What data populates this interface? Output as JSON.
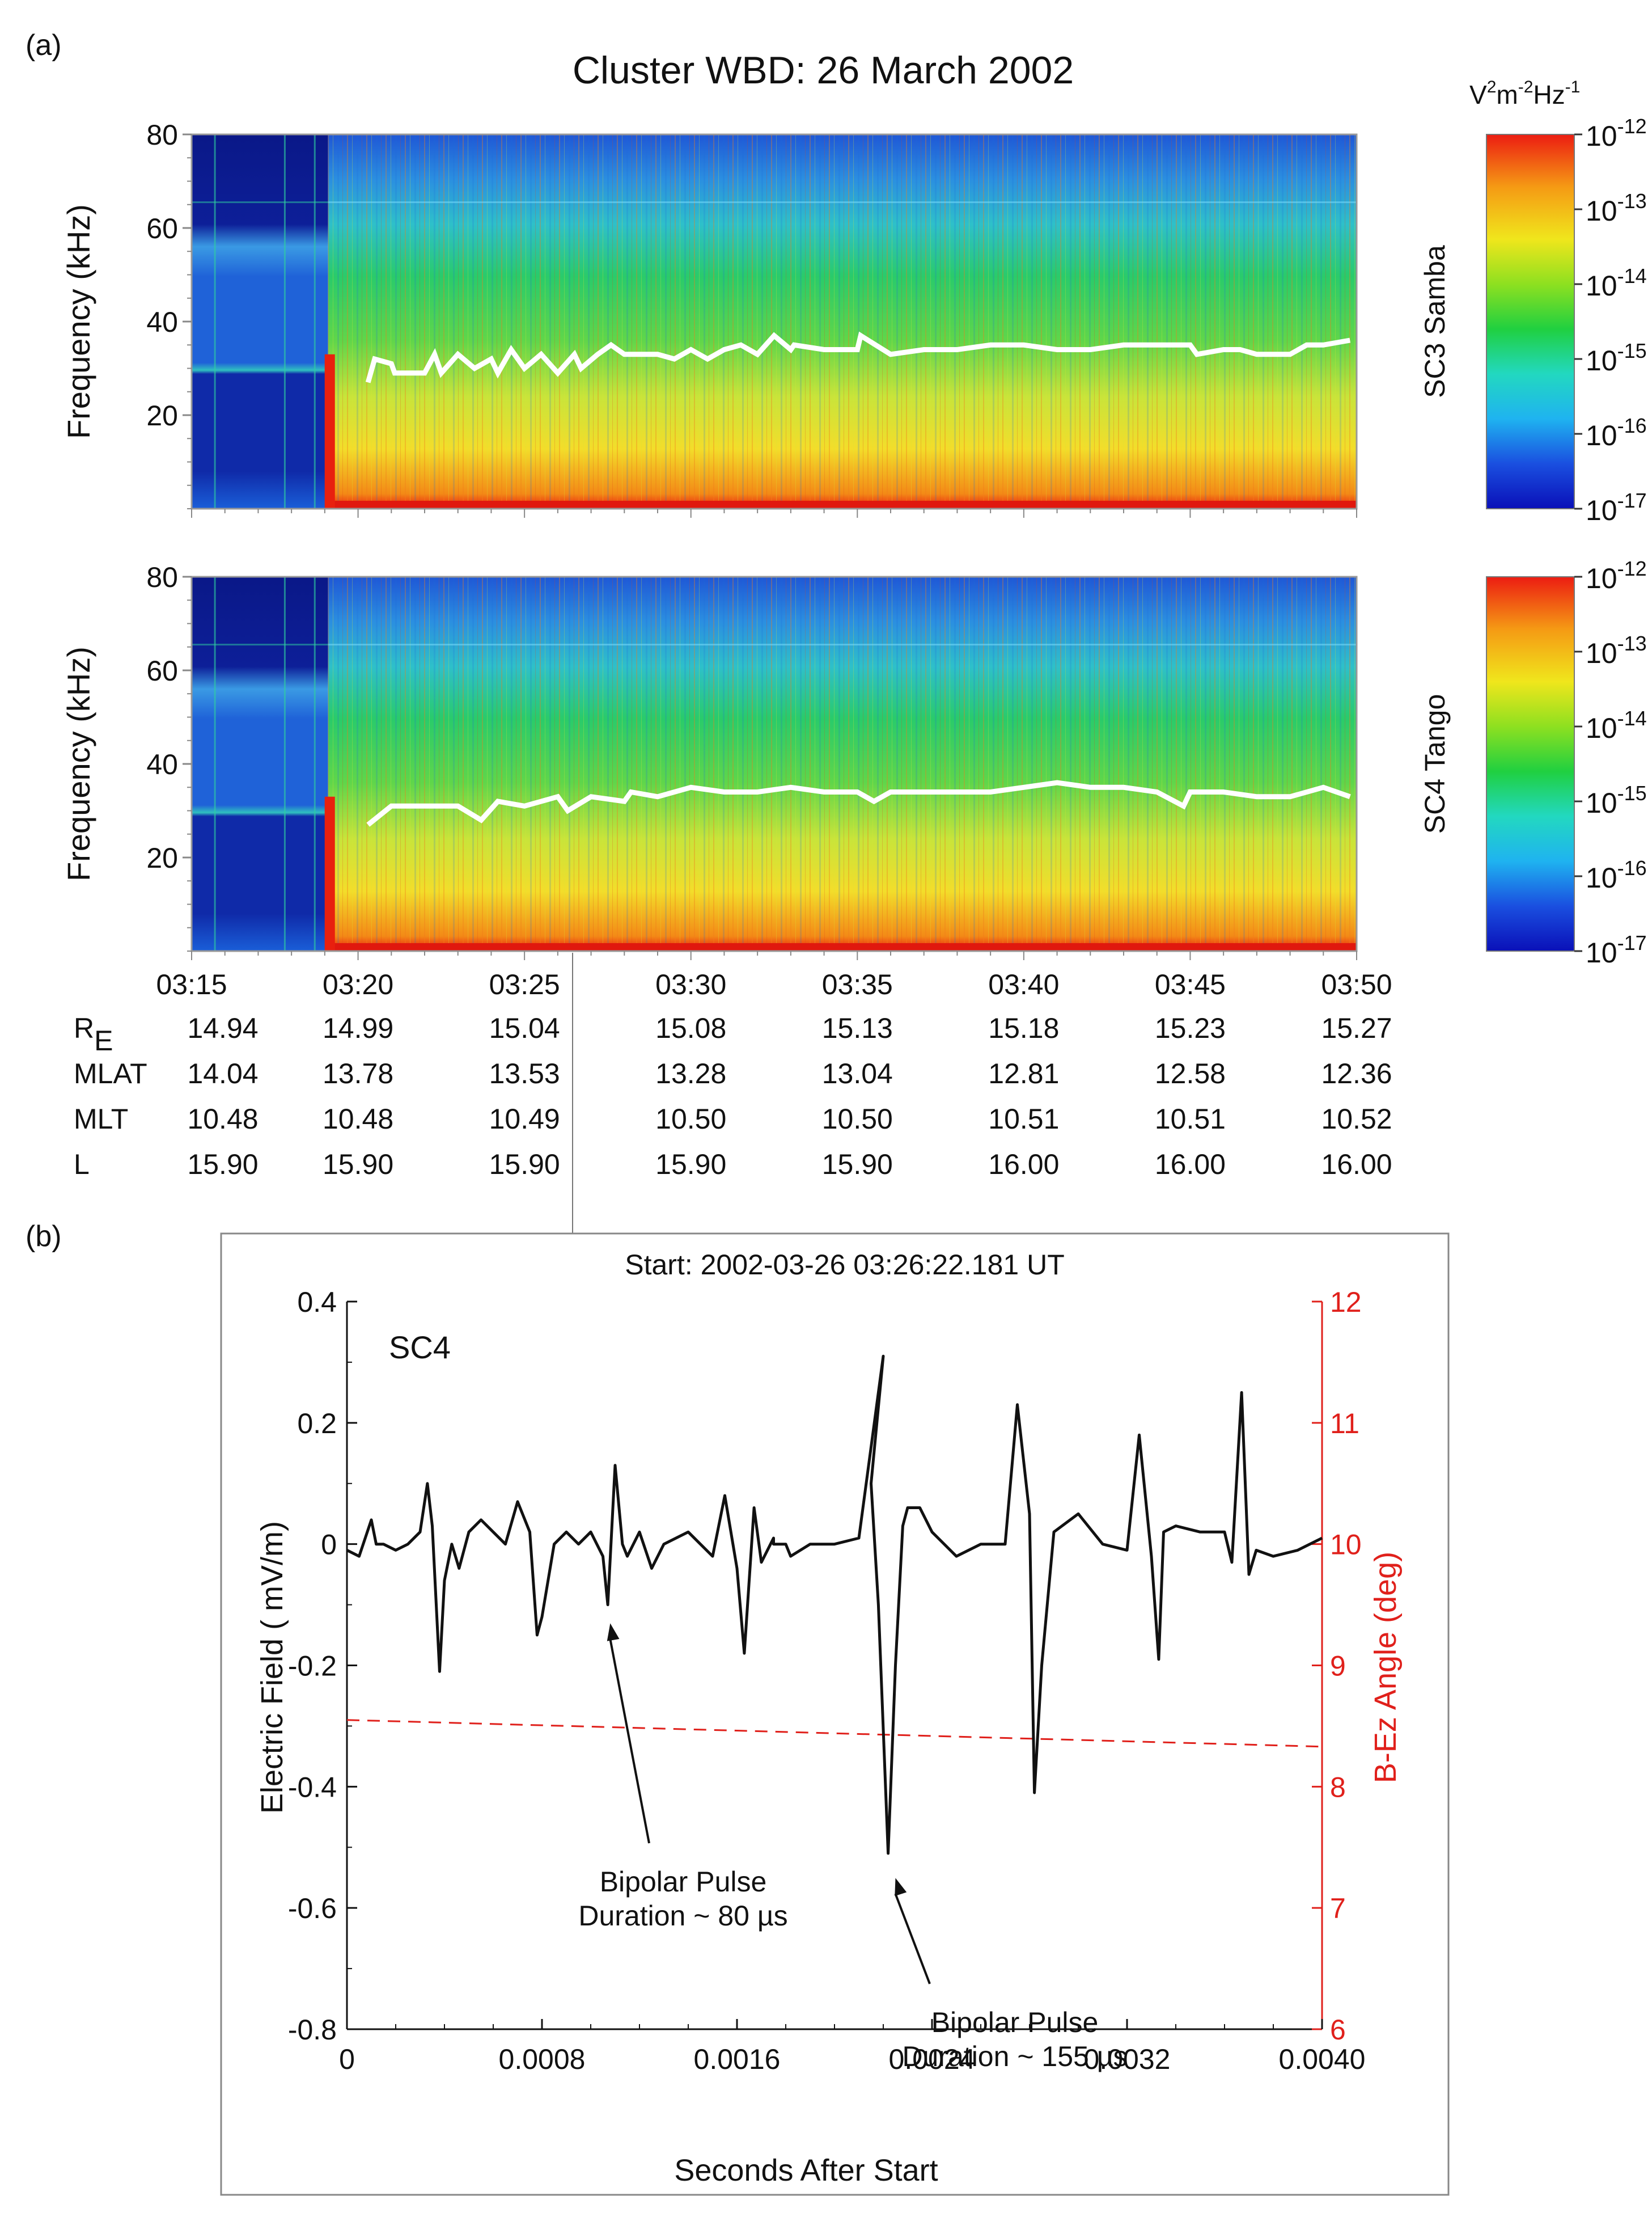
{
  "panel_a_label": "(a)",
  "panel_b_label": "(b)",
  "colors": {
    "line": "#111111",
    "angle": "#e0201b",
    "frame": "#333333",
    "bg_dark": "#0a1f9c",
    "bg_blue": "#1a62d6"
  },
  "chart_data": [
    {
      "type": "heatmap",
      "title": "Cluster WBD:  26 March 2002",
      "spacecraft": "SC3 Samba",
      "ylabel": "Frequency (kHz)",
      "ylim": [
        0,
        80
      ],
      "yticks": [
        "20",
        "40",
        "60",
        "80"
      ],
      "ytick_values": [
        20,
        40,
        60,
        80
      ],
      "xlim_minutes": [
        0,
        35
      ],
      "colorbar": {
        "units_label": "V²m⁻²Hz⁻¹",
        "units_base": "V",
        "units_sup1": "2",
        "units_mid": "m",
        "units_sup2": "-2",
        "units_tail": "Hz",
        "units_sup3": "-1",
        "base": "10",
        "exponents": [
          "-12",
          "-13",
          "-14",
          "-15",
          "-16",
          "-17"
        ],
        "range_log10": [
          -17,
          -12
        ]
      },
      "white_line_times_min": [
        5.3,
        5.5,
        6.0,
        6.1,
        7.0,
        7.3,
        7.5,
        8.0,
        8.5,
        9.0,
        9.2,
        9.6,
        10.0,
        10.5,
        11.0,
        11.5,
        11.7,
        12.2,
        12.6,
        13.0,
        14.0,
        14.5,
        15.0,
        15.5,
        16.0,
        16.5,
        17.0,
        17.5,
        18.0,
        18.1,
        19.0,
        20.0,
        20.1,
        21.0,
        22.0,
        23.0,
        24.0,
        25.0,
        26.0,
        27.0,
        28.0,
        29.0,
        30.0,
        30.2,
        31.0,
        31.5,
        32.0,
        33.0,
        33.5,
        34.0,
        34.8
      ],
      "white_line_khz": [
        27,
        32,
        31,
        29,
        29,
        33,
        29,
        33,
        30,
        32,
        29,
        34,
        30,
        33,
        29,
        33,
        30,
        33,
        35,
        33,
        33,
        32,
        34,
        32,
        34,
        35,
        33,
        37,
        34,
        35,
        34,
        34,
        37,
        33,
        34,
        34,
        35,
        35,
        34,
        34,
        35,
        35,
        35,
        33,
        34,
        34,
        33,
        33,
        35,
        35,
        36
      ]
    },
    {
      "type": "heatmap",
      "spacecraft": "SC4 Tango",
      "ylabel": "Frequency (kHz)",
      "ylim": [
        0,
        80
      ],
      "yticks": [
        "20",
        "40",
        "60",
        "80"
      ],
      "ytick_values": [
        20,
        40,
        60,
        80
      ],
      "xlim_minutes": [
        0,
        35
      ],
      "xticks": [
        "03:15",
        "03:20",
        "03:25",
        "03:30",
        "03:35",
        "03:40",
        "03:45",
        "03:50"
      ],
      "xtick_minutes": [
        0,
        5,
        10,
        15,
        20,
        25,
        30,
        35
      ],
      "colorbar": {
        "base": "10",
        "exponents": [
          "-12",
          "-13",
          "-14",
          "-15",
          "-16",
          "-17"
        ],
        "range_log10": [
          -17,
          -12
        ]
      },
      "white_line_times_min": [
        5.3,
        6.0,
        7.0,
        8.0,
        8.7,
        9.2,
        10.0,
        11.0,
        11.3,
        12.0,
        13.0,
        13.2,
        14.0,
        15.0,
        16.0,
        17.0,
        18.0,
        19.0,
        20.0,
        20.5,
        21.0,
        22.0,
        23.0,
        24.0,
        25.0,
        26.0,
        27.0,
        28.0,
        29.0,
        29.8,
        30.0,
        31.0,
        32.0,
        33.0,
        34.0,
        34.8
      ],
      "white_line_khz": [
        27,
        31,
        31,
        31,
        28,
        32,
        31,
        33,
        30,
        33,
        32,
        34,
        33,
        35,
        34,
        34,
        35,
        34,
        34,
        32,
        34,
        34,
        34,
        34,
        35,
        36,
        35,
        35,
        34,
        31,
        34,
        34,
        33,
        33,
        35,
        33
      ]
    },
    {
      "type": "table",
      "row_labels": [
        {
          "main": "R",
          "sub": "E"
        },
        {
          "main": "MLAT",
          "sub": ""
        },
        {
          "main": "MLT",
          "sub": ""
        },
        {
          "main": "L",
          "sub": ""
        }
      ],
      "rows": [
        [
          "14.94",
          "14.99",
          "15.04",
          "15.08",
          "15.13",
          "15.18",
          "15.23",
          "15.27"
        ],
        [
          "14.04",
          "13.78",
          "13.53",
          "13.28",
          "13.04",
          "12.81",
          "12.58",
          "12.36"
        ],
        [
          "10.48",
          "10.48",
          "10.49",
          "10.50",
          "10.50",
          "10.51",
          "10.51",
          "10.52"
        ],
        [
          "15.90",
          "15.90",
          "15.90",
          "15.90",
          "15.90",
          "16.00",
          "16.00",
          "16.00"
        ]
      ]
    },
    {
      "type": "line",
      "title": "Start:  2002-03-26 03:26:22.181 UT",
      "label": "SC4",
      "xlabel": "Seconds After Start",
      "ylabel": "Electric Field ( mV/m)",
      "y2label": "B-Ez Angle  (deg)",
      "xlim": [
        0,
        0.004
      ],
      "ylim": [
        -0.8,
        0.4
      ],
      "y2lim": [
        6,
        12
      ],
      "xticks": [
        "0",
        "0.0008",
        "0.0016",
        "0.0024",
        "0.0032",
        "0.0040"
      ],
      "xtick_values": [
        0,
        0.0008,
        0.0016,
        0.0024,
        0.0032,
        0.004
      ],
      "yticks": [
        "0.4",
        "0.2",
        "0",
        "-0.2",
        "-0.4",
        "-0.6",
        "-0.8"
      ],
      "ytick_values": [
        0.4,
        0.2,
        0,
        -0.2,
        -0.4,
        -0.6,
        -0.8
      ],
      "y2ticks": [
        "12",
        "11",
        "10",
        "9",
        "8",
        "7",
        "6"
      ],
      "y2tick_values": [
        12,
        11,
        10,
        9,
        8,
        7,
        6
      ],
      "series": [
        {
          "name": "Electric Field",
          "x": [
            0,
            5e-05,
            0.0001,
            0.00012,
            0.00015,
            0.0002,
            0.00025,
            0.0003,
            0.00033,
            0.00035,
            0.00038,
            0.0004,
            0.00043,
            0.00046,
            0.0005,
            0.00055,
            0.0006,
            0.00065,
            0.0007,
            0.00075,
            0.00078,
            0.0008,
            0.00085,
            0.0009,
            0.00095,
            0.001,
            0.00105,
            0.00107,
            0.0011,
            0.00113,
            0.00115,
            0.0012,
            0.00125,
            0.0013,
            0.0014,
            0.0015,
            0.00155,
            0.0016,
            0.00163,
            0.00167,
            0.0017,
            0.00175,
            0.00175,
            0.0018,
            0.00182,
            0.0019,
            0.002,
            0.0021,
            0.0022,
            0.00215,
            0.00218,
            0.00222,
            0.00225,
            0.00228,
            0.0023,
            0.00235,
            0.0024,
            0.0025,
            0.0026,
            0.0027,
            0.00275,
            0.0028,
            0.00282,
            0.00285,
            0.0029,
            0.003,
            0.0031,
            0.0032,
            0.00325,
            0.0033,
            0.00333,
            0.00335,
            0.0034,
            0.0035,
            0.0036,
            0.00363,
            0.00367,
            0.0037,
            0.00373,
            0.0038,
            0.0039,
            0.004
          ],
          "values": [
            -0.01,
            -0.02,
            0.04,
            0.0,
            0.0,
            -0.01,
            0.0,
            0.02,
            0.1,
            0.03,
            -0.21,
            -0.06,
            0.0,
            -0.04,
            0.02,
            0.04,
            0.02,
            0.0,
            0.07,
            0.02,
            -0.15,
            -0.12,
            0.0,
            0.02,
            0.0,
            0.02,
            -0.02,
            -0.1,
            0.13,
            0.0,
            -0.02,
            0.02,
            -0.04,
            0.0,
            0.02,
            -0.02,
            0.08,
            -0.04,
            -0.18,
            0.06,
            -0.03,
            0.01,
            0.0,
            0.0,
            -0.02,
            0.0,
            0.0,
            0.01,
            0.31,
            0.1,
            -0.1,
            -0.51,
            -0.2,
            0.03,
            0.06,
            0.06,
            0.02,
            -0.02,
            0.0,
            0.0,
            0.23,
            0.05,
            -0.41,
            -0.2,
            0.02,
            0.05,
            0.0,
            -0.01,
            0.18,
            -0.02,
            -0.19,
            0.02,
            0.03,
            0.02,
            0.02,
            -0.03,
            0.25,
            -0.05,
            -0.01,
            -0.02,
            -0.01,
            0.01
          ]
        },
        {
          "name": "B-Ez Angle",
          "axis": "right",
          "style": "dashed",
          "x": [
            0,
            0.004
          ],
          "values": [
            8.55,
            8.33
          ]
        }
      ],
      "annotations": [
        {
          "line1": "Bipolar Pulse",
          "line2_prefix": "Duration ~ 80 ",
          "unit": "µs",
          "target_x": 0.00108,
          "target_y": -0.11
        },
        {
          "line1": "Bipolar Pulse",
          "line2_prefix": "Duration ~ 155 ",
          "unit": "µs",
          "target_x": 0.00225,
          "target_y": -0.53
        }
      ]
    }
  ]
}
